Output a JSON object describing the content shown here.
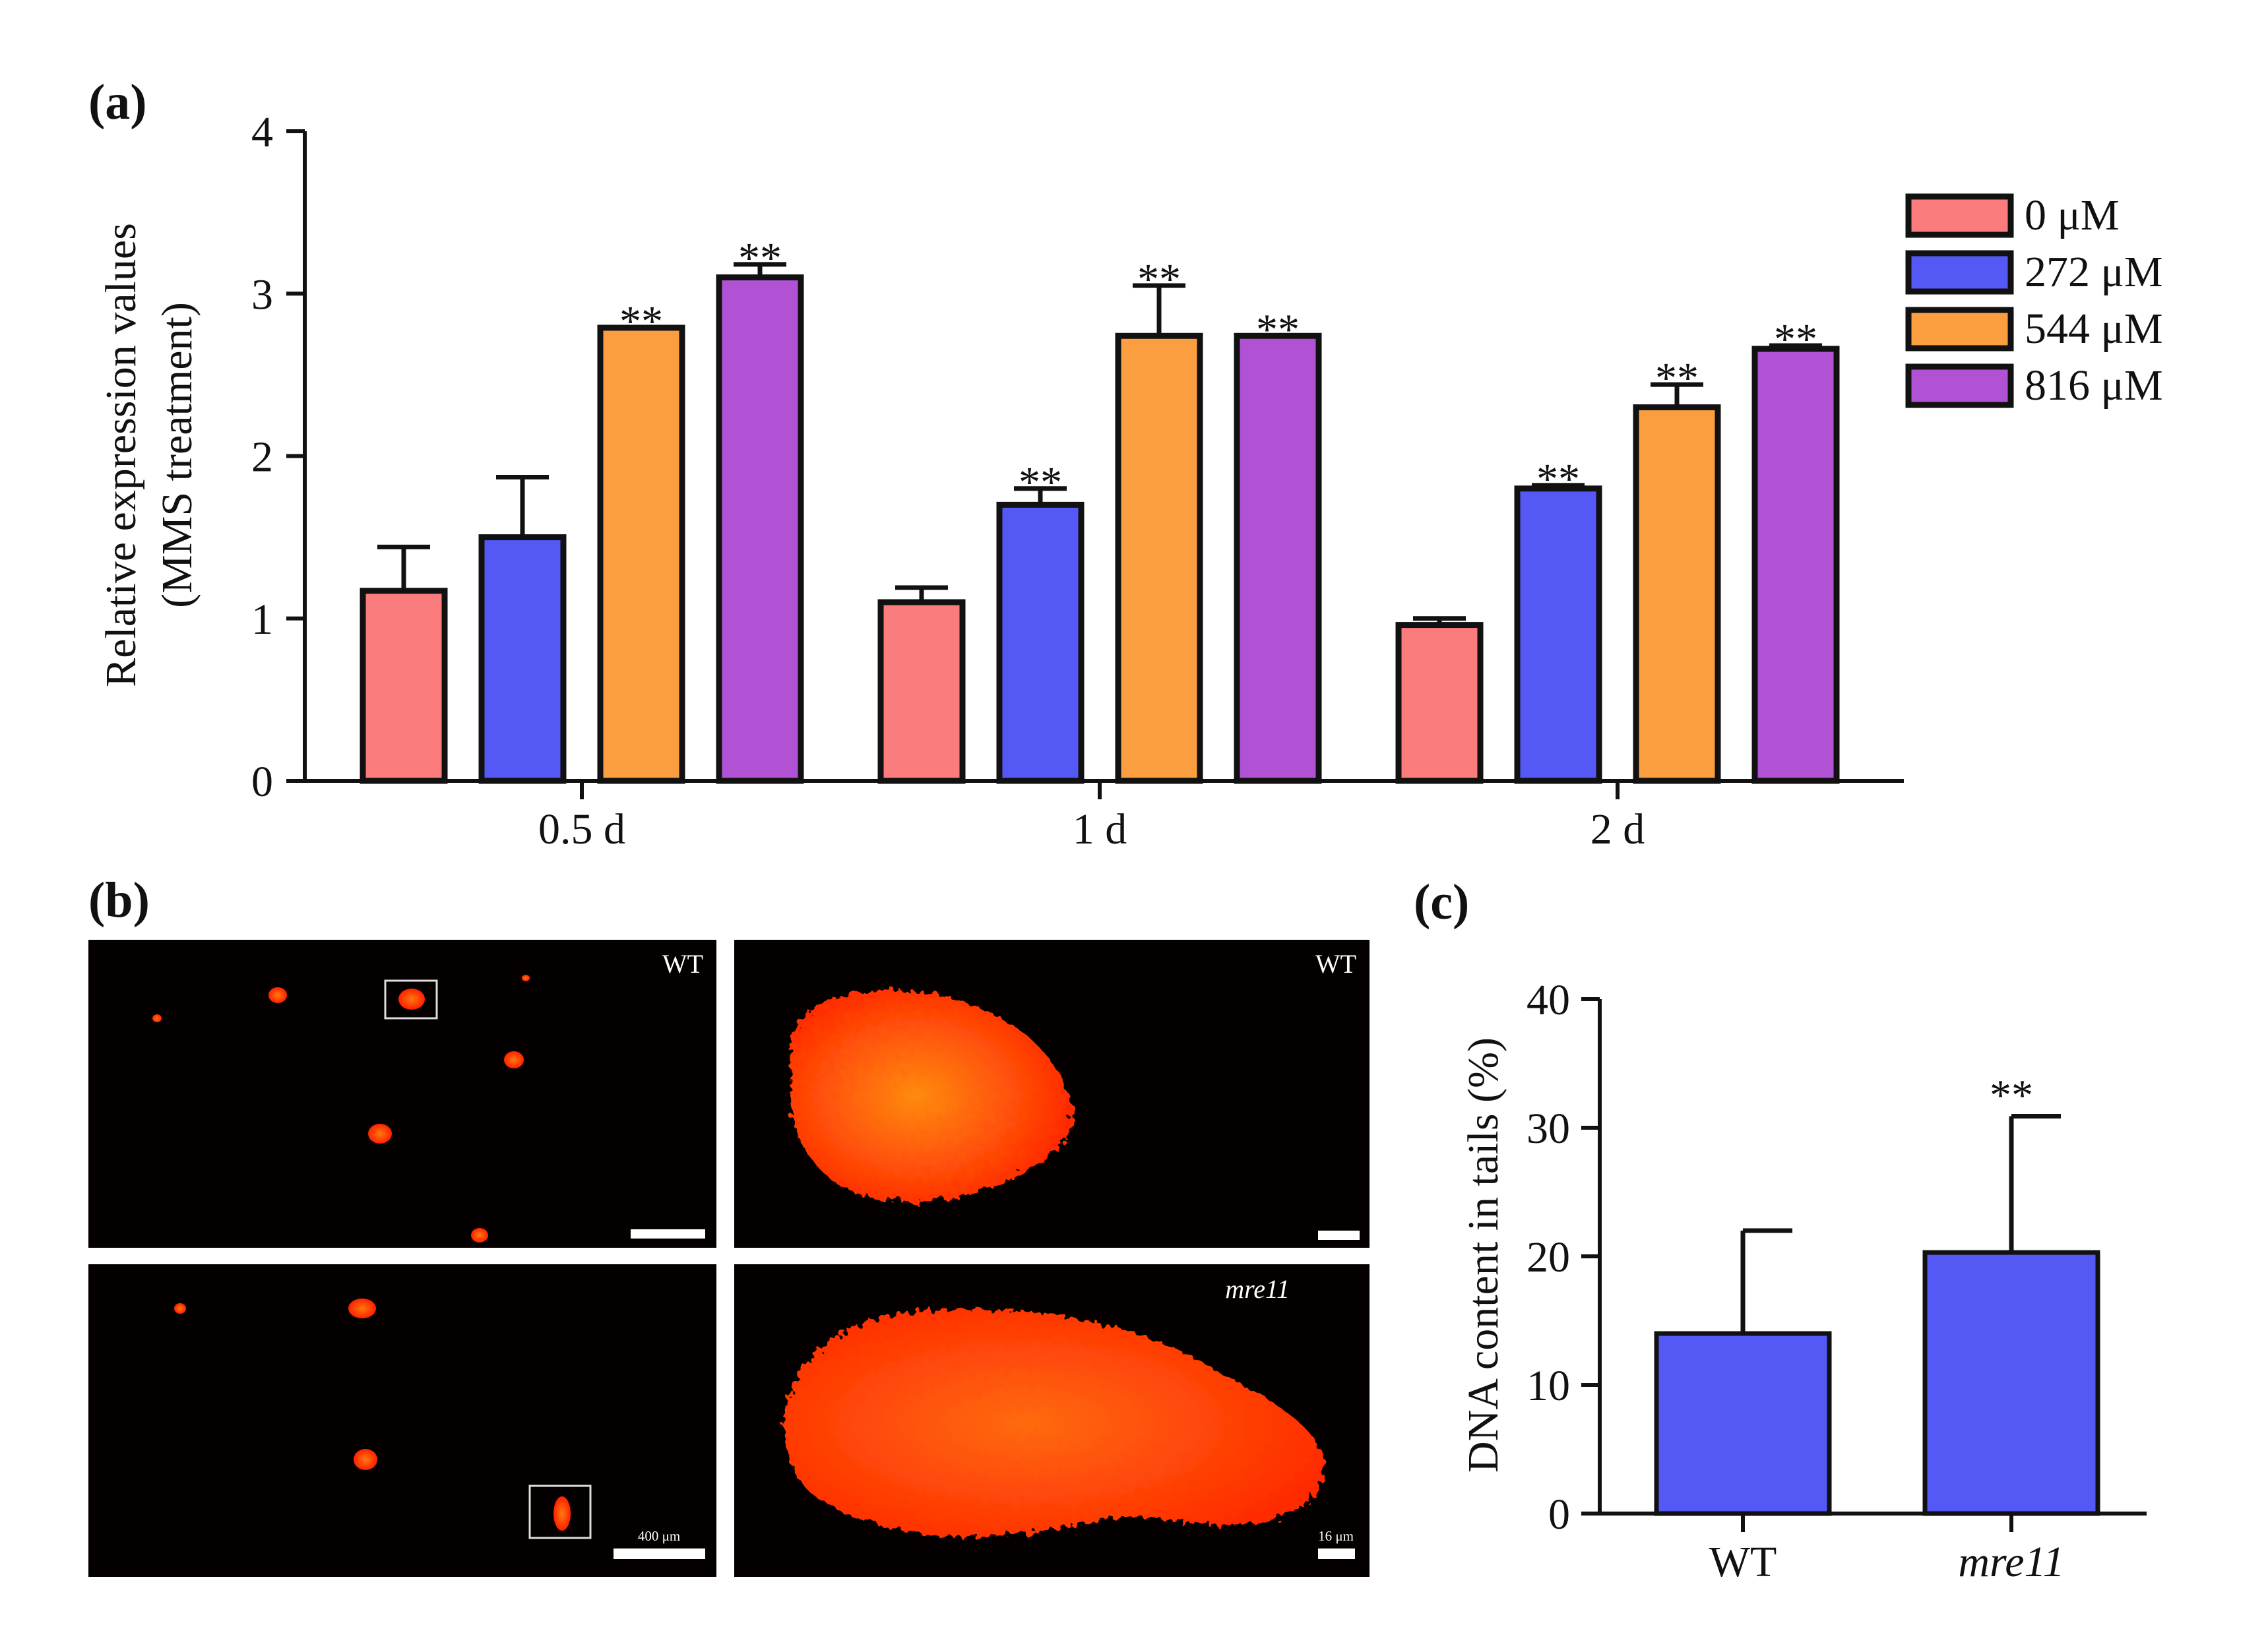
{
  "colors": {
    "0uM": "#fb7c7c",
    "272uM": "#5458f4",
    "544uM": "#fb9e40",
    "816uM": "#b152d5",
    "panel_c_bar": "#5458f4",
    "micrograph_bg": "#050000",
    "cell": "#ff3a05"
  },
  "panel_labels": {
    "a": "(a)",
    "b": "(b)",
    "c": "(c)"
  },
  "micrographs": {
    "top_left_label": "WT",
    "top_right_label": "WT",
    "bottom_right_label": "mre11",
    "scale_bar_1": "400 μm",
    "scale_bar_2": "16 μm"
  },
  "chart_data": [
    {
      "id": "a",
      "type": "bar",
      "title": "",
      "ylabel_line1": "Relative expression values",
      "ylabel_line2": "(MMS treatment)",
      "xlabel": "",
      "ylim": [
        0,
        4
      ],
      "yticks": [
        "0",
        "1",
        "2",
        "3",
        "4"
      ],
      "categories": [
        "0.5 d",
        "1 d",
        "2 d"
      ],
      "legend_position": "top-right",
      "series": [
        {
          "name": "0 μM",
          "color_key": "0uM",
          "values": [
            1.17,
            1.1,
            0.96
          ],
          "errors": [
            0.27,
            0.09,
            0.04
          ],
          "sig": [
            "",
            "",
            ""
          ]
        },
        {
          "name": "272 μM",
          "color_key": "272uM",
          "values": [
            1.5,
            1.7,
            1.8
          ],
          "errors": [
            0.37,
            0.1,
            0.02
          ],
          "sig": [
            "",
            "**",
            "**"
          ]
        },
        {
          "name": "544 μM",
          "color_key": "544uM",
          "values": [
            2.79,
            2.74,
            2.3
          ],
          "errors": [
            0.0,
            0.31,
            0.14
          ],
          "sig": [
            "**",
            "**",
            "**"
          ]
        },
        {
          "name": "816 μM",
          "color_key": "816uM",
          "values": [
            3.1,
            2.74,
            2.66
          ],
          "errors": [
            0.08,
            0.0,
            0.02
          ],
          "sig": [
            "**",
            "**",
            "**"
          ]
        }
      ]
    },
    {
      "id": "c",
      "type": "bar",
      "title": "",
      "ylabel": "DNA content in tails (%)",
      "xlabel": "",
      "ylim": [
        0,
        40
      ],
      "yticks": [
        "0",
        "10",
        "20",
        "30",
        "40"
      ],
      "categories": [
        "WT",
        "mre11"
      ],
      "values": [
        14.0,
        20.3
      ],
      "errors": [
        8.0,
        10.6
      ],
      "sig": [
        "",
        "**"
      ]
    }
  ]
}
